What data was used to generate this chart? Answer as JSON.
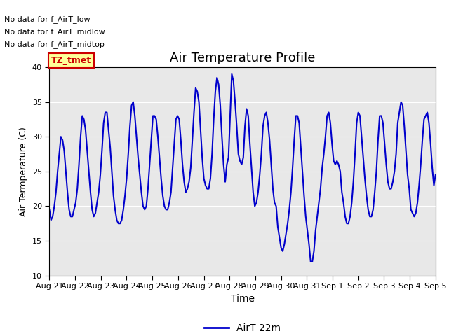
{
  "title": "Air Temperature Profile",
  "xlabel": "Time",
  "ylabel": "Air Termperature (C)",
  "ylim": [
    10,
    40
  ],
  "bg_color": "#e8e8e8",
  "line_color": "#0000cc",
  "line_width": 1.5,
  "legend_label": "AirT 22m",
  "annotations": [
    "No data for f_AirT_low",
    "No data for f_AirT_midlow",
    "No data for f_AirT_midtop"
  ],
  "legend_box_color": "#ffff99",
  "legend_box_edge": "#cc0000",
  "legend_text_color": "#cc0000",
  "legend_box_text": "TZ_tmet",
  "x_tick_labels": [
    "Aug 21",
    "Aug 22",
    "Aug 23",
    "Aug 24",
    "Aug 25",
    "Aug 26",
    "Aug 27",
    "Aug 28",
    "Aug 29",
    "Aug 30",
    "Aug 31",
    "Sep 1",
    "Sep 2",
    "Sep 3",
    "Sep 4",
    "Sep 5"
  ],
  "y_data": [
    19.5,
    18.0,
    18.5,
    20.0,
    22.0,
    25.0,
    27.5,
    30.0,
    29.5,
    28.0,
    25.0,
    22.0,
    19.5,
    18.5,
    18.5,
    19.5,
    20.5,
    22.5,
    26.0,
    30.0,
    33.0,
    32.5,
    31.0,
    28.0,
    25.0,
    22.0,
    19.5,
    18.5,
    19.0,
    20.5,
    22.0,
    24.5,
    28.0,
    32.0,
    33.5,
    33.5,
    31.0,
    28.5,
    25.0,
    21.5,
    19.5,
    18.0,
    17.5,
    17.5,
    18.0,
    19.5,
    21.5,
    24.0,
    27.5,
    31.5,
    34.5,
    35.0,
    33.0,
    30.0,
    27.0,
    24.5,
    22.0,
    20.0,
    19.5,
    20.0,
    22.5,
    26.0,
    29.5,
    33.0,
    33.0,
    32.5,
    30.0,
    27.0,
    24.0,
    21.5,
    20.0,
    19.5,
    19.5,
    20.5,
    22.0,
    25.5,
    29.0,
    32.5,
    33.0,
    32.5,
    29.5,
    26.0,
    23.5,
    22.0,
    22.5,
    23.5,
    25.5,
    29.5,
    33.5,
    37.0,
    36.5,
    35.0,
    31.0,
    27.0,
    24.0,
    23.0,
    22.5,
    22.5,
    24.0,
    27.5,
    32.5,
    36.5,
    38.5,
    37.5,
    34.5,
    30.0,
    26.0,
    23.5,
    26.0,
    27.0,
    33.0,
    39.0,
    38.0,
    35.0,
    31.5,
    27.5,
    26.5,
    26.0,
    27.0,
    31.5,
    34.0,
    33.0,
    29.0,
    25.5,
    22.0,
    20.0,
    20.5,
    22.0,
    24.5,
    27.5,
    31.5,
    33.0,
    33.5,
    32.0,
    29.5,
    26.0,
    22.5,
    20.5,
    20.0,
    17.0,
    15.5,
    14.0,
    13.5,
    14.5,
    16.0,
    17.5,
    19.5,
    22.0,
    25.5,
    29.5,
    33.0,
    33.0,
    32.0,
    28.5,
    25.0,
    21.5,
    18.5,
    16.5,
    14.5,
    12.0,
    12.0,
    13.5,
    16.5,
    18.5,
    20.5,
    22.5,
    25.5,
    27.5,
    30.0,
    33.0,
    33.5,
    32.0,
    29.0,
    26.5,
    26.0,
    26.5,
    26.0,
    25.0,
    22.0,
    20.5,
    18.5,
    17.5,
    17.5,
    18.5,
    20.5,
    23.5,
    27.5,
    32.0,
    33.5,
    33.0,
    30.0,
    27.0,
    24.0,
    21.5,
    19.5,
    18.5,
    18.5,
    19.5,
    22.0,
    25.0,
    29.5,
    33.0,
    33.0,
    32.0,
    29.0,
    26.0,
    23.5,
    22.5,
    22.5,
    23.5,
    25.0,
    27.5,
    32.0,
    33.5,
    35.0,
    34.5,
    31.5,
    28.0,
    24.5,
    22.5,
    19.5,
    19.0,
    18.5,
    19.0,
    20.5,
    23.0,
    26.0,
    29.5,
    32.5,
    33.0,
    33.5,
    32.0,
    29.0,
    25.5,
    23.0,
    24.5
  ]
}
